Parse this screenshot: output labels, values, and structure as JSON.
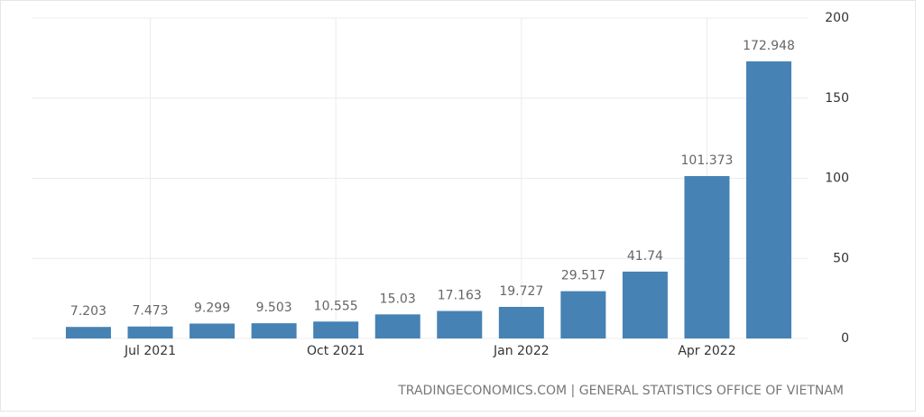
{
  "chart_data": {
    "type": "bar",
    "categories": [
      null,
      "Jul 2021",
      null,
      null,
      "Oct 2021",
      null,
      null,
      "Jan 2022",
      null,
      null,
      "Apr 2022",
      null
    ],
    "values": [
      7.203,
      7.473,
      9.299,
      9.503,
      10.555,
      15.03,
      17.163,
      19.727,
      29.517,
      41.74,
      101.373,
      172.948
    ],
    "color": "#4682b4",
    "ylim": [
      0,
      200
    ],
    "yticks": [
      0,
      50,
      100,
      150,
      200
    ],
    "grid": true,
    "source": "TRADINGECONOMICS.COM | GENERAL STATISTICS OFFICE OF VIETNAM"
  }
}
